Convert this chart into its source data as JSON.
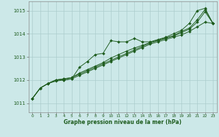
{
  "x": [
    0,
    1,
    2,
    3,
    4,
    5,
    6,
    7,
    8,
    9,
    10,
    11,
    12,
    13,
    14,
    15,
    16,
    17,
    18,
    19,
    20,
    21,
    22,
    23
  ],
  "line1": [
    1011.2,
    1011.65,
    1011.85,
    1011.95,
    1012.0,
    1012.05,
    1012.55,
    1012.8,
    1013.1,
    1013.15,
    1013.7,
    1013.65,
    1013.65,
    1013.8,
    1013.65,
    1013.65,
    1013.75,
    1013.85,
    1014.0,
    1014.15,
    1014.45,
    1015.0,
    1015.1,
    1014.45
  ],
  "line2": [
    1011.2,
    1011.65,
    1011.85,
    1012.0,
    1012.0,
    1012.05,
    1012.2,
    1012.35,
    1012.5,
    1012.65,
    1012.8,
    1012.95,
    1013.1,
    1013.25,
    1013.4,
    1013.55,
    1013.65,
    1013.75,
    1013.85,
    1013.95,
    1014.1,
    1014.3,
    1014.5,
    1014.45
  ],
  "line3": [
    1011.2,
    1011.65,
    1011.85,
    1012.0,
    1012.05,
    1012.1,
    1012.3,
    1012.45,
    1012.6,
    1012.75,
    1012.95,
    1013.1,
    1013.25,
    1013.38,
    1013.5,
    1013.62,
    1013.72,
    1013.82,
    1013.92,
    1014.1,
    1014.25,
    1014.6,
    1015.05,
    1014.45
  ],
  "line4": [
    1011.2,
    1011.65,
    1011.85,
    1012.0,
    1012.05,
    1012.1,
    1012.25,
    1012.4,
    1012.55,
    1012.7,
    1012.85,
    1013.0,
    1013.15,
    1013.3,
    1013.45,
    1013.6,
    1013.7,
    1013.8,
    1013.9,
    1014.05,
    1014.2,
    1014.5,
    1014.95,
    1014.45
  ],
  "bg_color": "#cce8e8",
  "grid_color": "#aacccc",
  "line_color": "#1e5c1e",
  "xlabel": "Graphe pression niveau de la mer (hPa)",
  "ylim": [
    1010.6,
    1015.4
  ],
  "yticks": [
    1011,
    1012,
    1013,
    1014,
    1015
  ],
  "xlim": [
    -0.5,
    23.5
  ],
  "figwidth": 3.2,
  "figheight": 2.0,
  "dpi": 100
}
